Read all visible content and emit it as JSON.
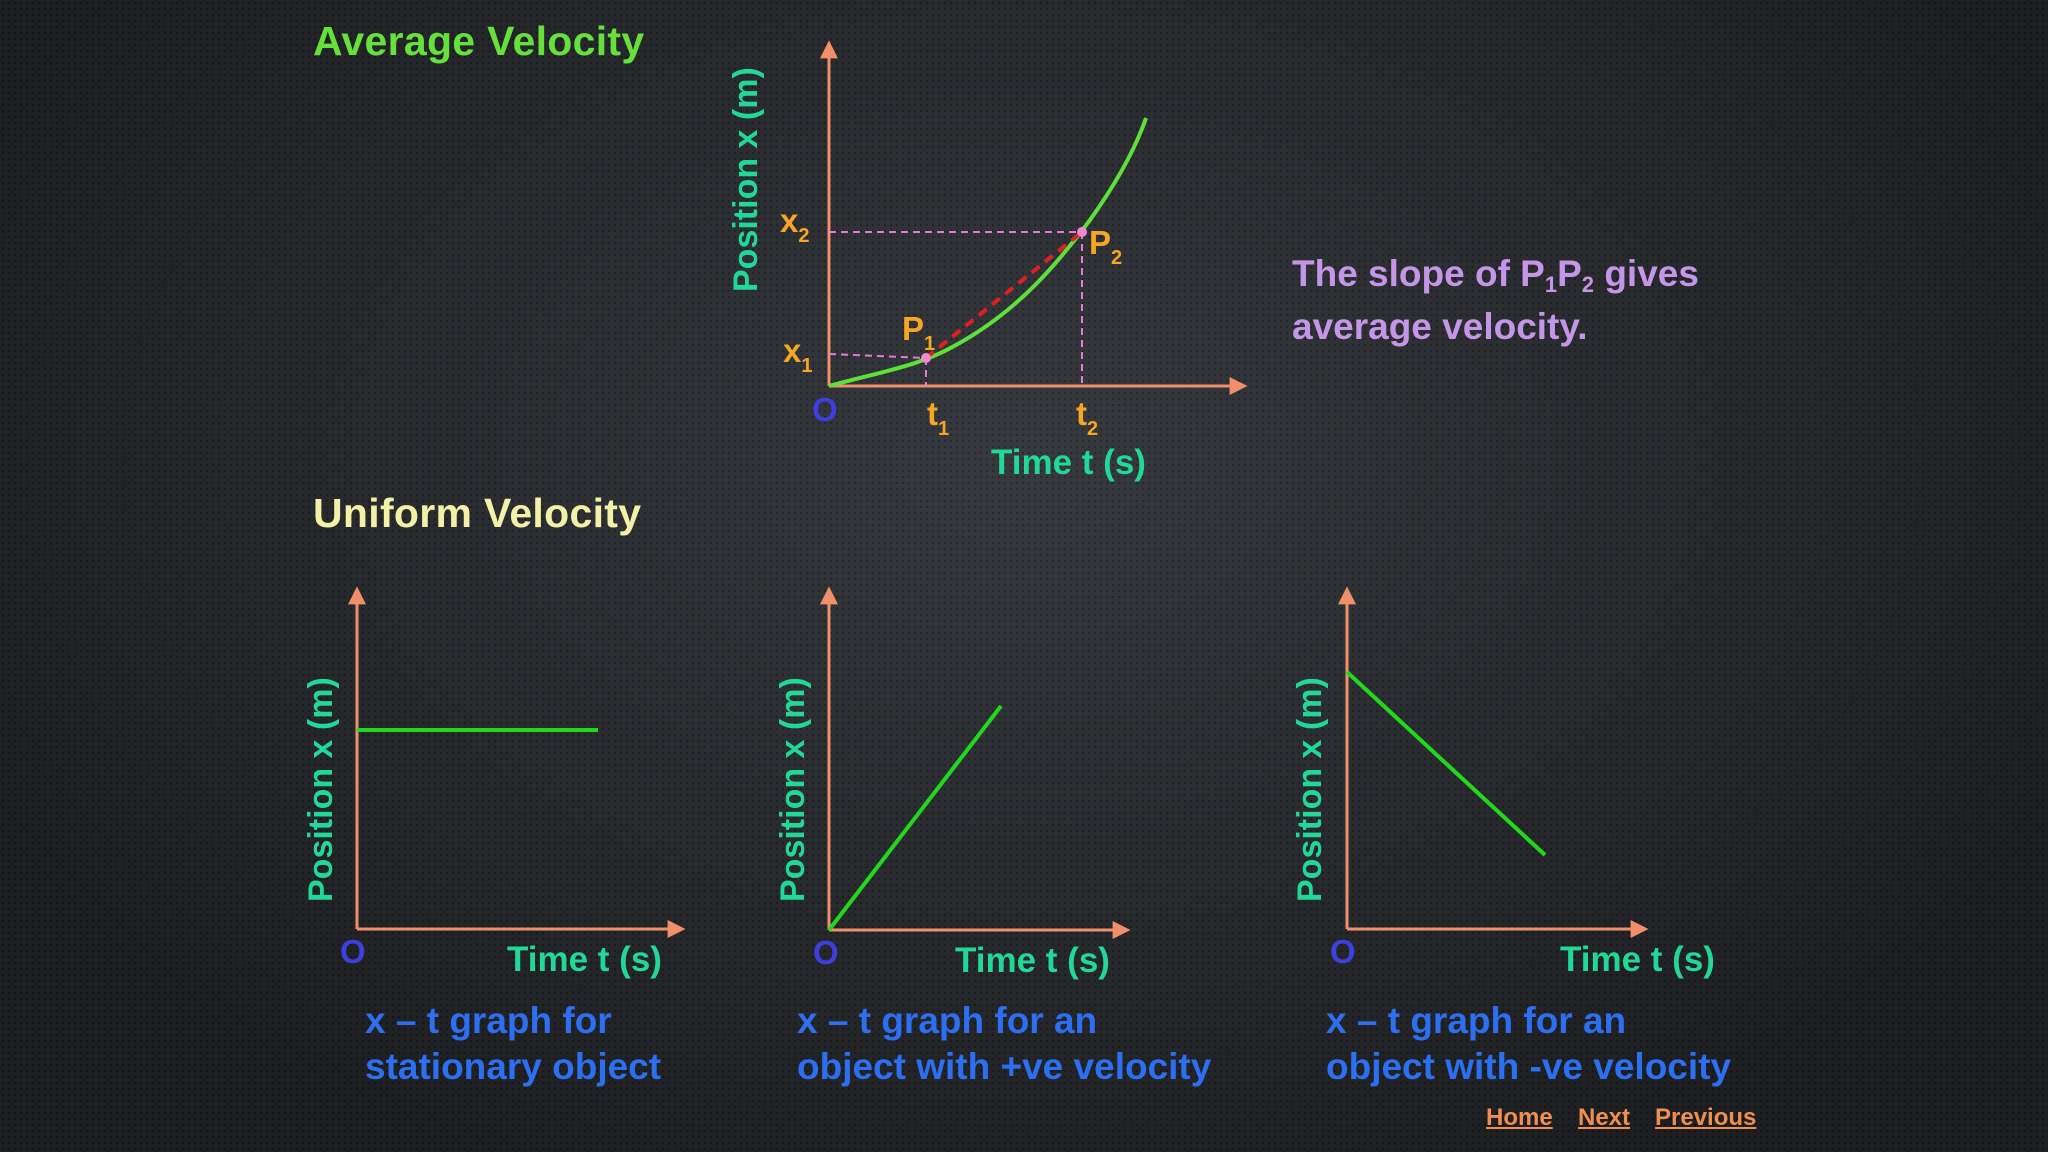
{
  "colors": {
    "heading_avg": "#66e03a",
    "heading_uniform": "#f3f0a8",
    "axis": "#f0906a",
    "axis_label": "#22d897",
    "origin": "#3f3fe0",
    "curve": "#5ee03c",
    "line": "#22d81c",
    "chord": "#e02020",
    "point_label": "#f5a623",
    "point": "#f28ad0",
    "guide": "#e77ad8",
    "slope_text": "#c596e8",
    "caption": "#2c6ff0",
    "nav": "#ef8f4f"
  },
  "headings": {
    "average": "Average Velocity",
    "uniform": "Uniform Velocity"
  },
  "avg_graph": {
    "y_label": "Position x (m)",
    "x_label": "Time t (s)",
    "origin": "O",
    "x1": "x",
    "x1_sub": "1",
    "x2": "x",
    "x2_sub": "2",
    "t1": "t",
    "t1_sub": "1",
    "t2": "t",
    "t2_sub": "2",
    "p1": "P",
    "p1_sub": "1",
    "p2": "P",
    "p2_sub": "2"
  },
  "slope_text": {
    "part1": "The slope of P",
    "sub1": "1",
    "part2": "P",
    "sub2": "2",
    "part3": " gives",
    "line2": "average velocity."
  },
  "graphs": [
    {
      "y_label": "Position x (m)",
      "x_label": "Time t (s)",
      "origin": "O",
      "velocity": "zero"
    },
    {
      "y_label": "Position x (m)",
      "x_label": "Time t (s)",
      "origin": "O",
      "velocity": "positive"
    },
    {
      "y_label": "Position x (m)",
      "x_label": "Time t (s)",
      "origin": "O",
      "velocity": "negative"
    }
  ],
  "captions": [
    {
      "line1": "x – t graph for",
      "line2": "stationary object"
    },
    {
      "line1": "x – t graph for an",
      "line2": "object with +ve velocity"
    },
    {
      "line1": "x – t graph for an",
      "line2": "object with -ve velocity"
    }
  ],
  "nav": {
    "home": "Home",
    "next": "Next",
    "previous": "Previous"
  }
}
